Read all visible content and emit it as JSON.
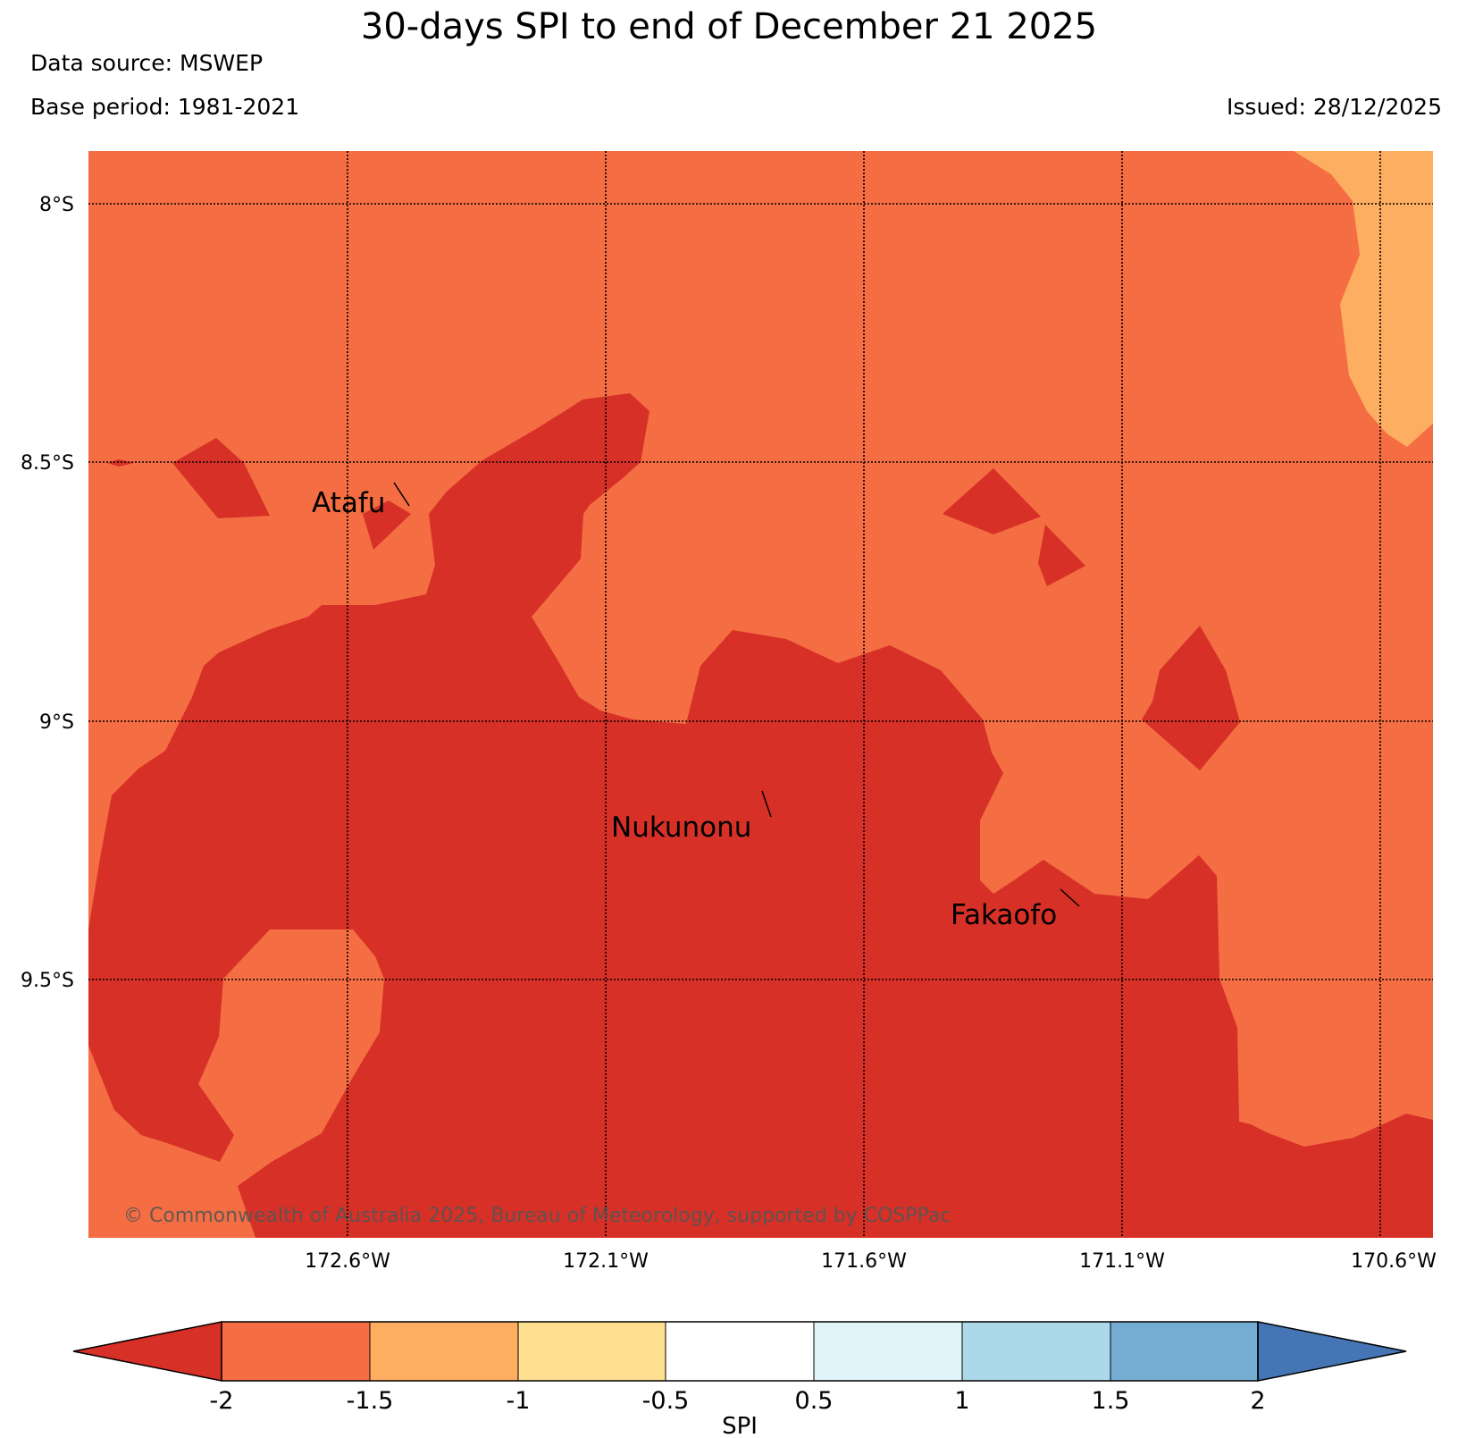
{
  "header": {
    "title": "30-days SPI to end of December 21 2025",
    "data_source": "Data source: MSWEP",
    "base_period": "Base period: 1981-2021",
    "issued": "Issued: 28/12/2025"
  },
  "map": {
    "lon_ticks": [
      "172.6°W",
      "172.1°W",
      "171.6°W",
      "171.1°W",
      "170.6°W"
    ],
    "lat_ticks": [
      "8°S",
      "8.5°S",
      "9°S",
      "9.5°S"
    ],
    "places": [
      "Atafu",
      "Nukunonu",
      "Fakaofo"
    ],
    "copyright": "© Commonwealth of Australia 2025, Bureau of Meteorology, supported by COSPPac",
    "region_colors": {
      "below_minus_2": "#d73027",
      "minus_2_to_minus_1_5": "#f46d43",
      "minus_1_5_to_minus_1": "#fdae61"
    }
  },
  "colorbar": {
    "label": "SPI",
    "ticks": [
      "-2",
      "-1.5",
      "-1",
      "-0.5",
      "0.5",
      "1",
      "1.5",
      "2"
    ],
    "colors": [
      "#d73027",
      "#f46d43",
      "#fdae61",
      "#fee090",
      "#ffffff",
      "#e0f3f8",
      "#abd9e9",
      "#74add1",
      "#4575b4"
    ]
  }
}
